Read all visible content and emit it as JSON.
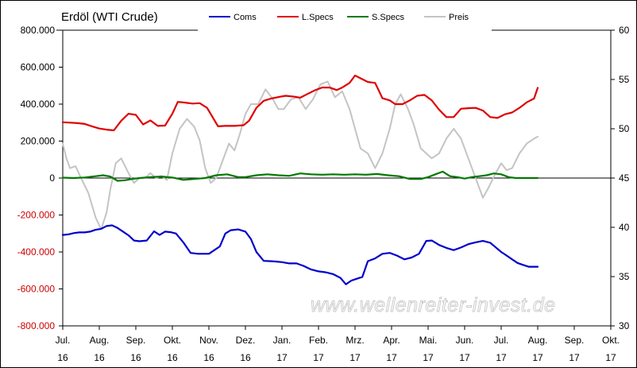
{
  "chart_data": {
    "type": "line",
    "title": "Erdöl (WTI Crude)",
    "watermark": "www.wellenreiter-invest.de",
    "x_tick_labels": [
      [
        "Jul.",
        "16"
      ],
      [
        "Aug.",
        "16"
      ],
      [
        "Sep.",
        "16"
      ],
      [
        "Okt.",
        "16"
      ],
      [
        "Nov.",
        "16"
      ],
      [
        "Dez.",
        "16"
      ],
      [
        "Jan.",
        "17"
      ],
      [
        "Feb.",
        "17"
      ],
      [
        "Mrz.",
        "17"
      ],
      [
        "Apr.",
        "17"
      ],
      [
        "Mai.",
        "17"
      ],
      [
        "Jun.",
        "17"
      ],
      [
        "Jul.",
        "17"
      ],
      [
        "Aug.",
        "17"
      ],
      [
        "Sep.",
        "17"
      ],
      [
        "Okt.",
        "17"
      ]
    ],
    "x_range_months": [
      0,
      15
    ],
    "left_axis": {
      "range": [
        -800000,
        800000
      ],
      "tick_labels": [
        "800.000",
        "600.000",
        "400.000",
        "200.000",
        "0",
        "-200.000",
        "-400.000",
        "-600.000",
        "-800.000"
      ],
      "tick_values": [
        800000,
        600000,
        400000,
        200000,
        0,
        -200000,
        -400000,
        -600000,
        -800000
      ]
    },
    "right_axis": {
      "range": [
        30,
        60
      ],
      "tick_labels": [
        "60",
        "55",
        "50",
        "45",
        "40",
        "35",
        "30"
      ],
      "tick_values": [
        60,
        55,
        50,
        45,
        40,
        35,
        30
      ]
    },
    "grid": "horizontal-at-zero",
    "legend_position": "top",
    "series": [
      {
        "name": "Coms",
        "color": "#0000cc",
        "axis": "left",
        "x": [
          0,
          0.15,
          0.3,
          0.45,
          0.6,
          0.75,
          0.9,
          1.05,
          1.2,
          1.35,
          1.5,
          1.65,
          1.8,
          1.95,
          2.1,
          2.3,
          2.5,
          2.65,
          2.8,
          2.95,
          3.1,
          3.3,
          3.5,
          3.7,
          3.85,
          4.0,
          4.15,
          4.3,
          4.45,
          4.6,
          4.8,
          5.0,
          5.15,
          5.3,
          5.5,
          5.7,
          5.85,
          6.0,
          6.2,
          6.4,
          6.6,
          6.8,
          7.0,
          7.2,
          7.4,
          7.6,
          7.75,
          7.9,
          8.05,
          8.2,
          8.35,
          8.55,
          8.75,
          8.95,
          9.15,
          9.35,
          9.55,
          9.75,
          9.95,
          10.1,
          10.3,
          10.5,
          10.7,
          10.9,
          11.1,
          11.3,
          11.5,
          11.7,
          11.85,
          12.0,
          12.15,
          12.3,
          12.45,
          12.6,
          12.75,
          12.85,
          13.0
        ],
        "values": [
          -308000,
          -305000,
          -298000,
          -294000,
          -294000,
          -290000,
          -280000,
          -275000,
          -260000,
          -256000,
          -270000,
          -290000,
          -310000,
          -338000,
          -342000,
          -338000,
          -288000,
          -308000,
          -290000,
          -293000,
          -300000,
          -348000,
          -405000,
          -410000,
          -410000,
          -410000,
          -390000,
          -370000,
          -300000,
          -282000,
          -278000,
          -290000,
          -330000,
          -400000,
          -448000,
          -450000,
          -452000,
          -455000,
          -462000,
          -462000,
          -476000,
          -495000,
          -505000,
          -510000,
          -520000,
          -540000,
          -575000,
          -555000,
          -545000,
          -535000,
          -450000,
          -435000,
          -410000,
          -405000,
          -420000,
          -440000,
          -430000,
          -410000,
          -340000,
          -338000,
          -362000,
          -378000,
          -390000,
          -376000,
          -358000,
          -348000,
          -340000,
          -350000,
          -375000,
          -400000,
          -420000,
          -440000,
          -460000,
          -470000,
          -480000,
          -480000,
          -480000
        ]
      },
      {
        "name": "L.Specs",
        "color": "#e00000",
        "axis": "left",
        "x": [
          0,
          0.2,
          0.4,
          0.6,
          0.8,
          1.0,
          1.2,
          1.4,
          1.6,
          1.8,
          2.0,
          2.2,
          2.4,
          2.6,
          2.8,
          3.0,
          3.15,
          3.35,
          3.55,
          3.75,
          3.95,
          4.1,
          4.25,
          4.45,
          4.7,
          4.95,
          5.1,
          5.3,
          5.5,
          5.7,
          5.95,
          6.1,
          6.35,
          6.5,
          6.7,
          6.9,
          7.1,
          7.3,
          7.5,
          7.65,
          7.85,
          8.0,
          8.15,
          8.35,
          8.55,
          8.75,
          8.95,
          9.1,
          9.3,
          9.5,
          9.7,
          9.9,
          10.1,
          10.3,
          10.5,
          10.7,
          10.9,
          11.1,
          11.3,
          11.5,
          11.7,
          11.9,
          12.1,
          12.3,
          12.5,
          12.7,
          12.9,
          13.0
        ],
        "values": [
          302000,
          300000,
          297000,
          293000,
          280000,
          268000,
          262000,
          258000,
          310000,
          348000,
          342000,
          290000,
          312000,
          282000,
          284000,
          348000,
          412000,
          408000,
          403000,
          405000,
          380000,
          330000,
          280000,
          282000,
          282000,
          286000,
          310000,
          380000,
          418000,
          430000,
          440000,
          445000,
          440000,
          435000,
          455000,
          475000,
          490000,
          490000,
          476000,
          490000,
          515000,
          555000,
          540000,
          520000,
          515000,
          432000,
          420000,
          400000,
          400000,
          420000,
          445000,
          450000,
          420000,
          370000,
          330000,
          330000,
          375000,
          378000,
          380000,
          365000,
          330000,
          325000,
          345000,
          355000,
          380000,
          410000,
          430000,
          488000
        ]
      },
      {
        "name": "S.Specs",
        "color": "#007a00",
        "axis": "left",
        "x": [
          0,
          0.3,
          0.6,
          0.9,
          1.1,
          1.3,
          1.5,
          1.7,
          1.9,
          2.1,
          2.4,
          2.7,
          3.0,
          3.3,
          3.6,
          3.9,
          4.2,
          4.5,
          4.8,
          5.0,
          5.3,
          5.6,
          5.9,
          6.2,
          6.5,
          6.8,
          7.1,
          7.4,
          7.7,
          8.0,
          8.3,
          8.6,
          8.9,
          9.2,
          9.5,
          9.8,
          10.0,
          10.2,
          10.4,
          10.6,
          10.8,
          11.0,
          11.2,
          11.4,
          11.6,
          11.8,
          12.0,
          12.2,
          12.4,
          12.6,
          12.8,
          13.0
        ],
        "values": [
          2000,
          0,
          3000,
          10000,
          15000,
          8000,
          -15000,
          -12000,
          -5000,
          0,
          5000,
          8000,
          3000,
          -10000,
          -5000,
          0,
          15000,
          20000,
          5000,
          5000,
          15000,
          20000,
          15000,
          12000,
          25000,
          20000,
          18000,
          20000,
          18000,
          20000,
          18000,
          22000,
          15000,
          10000,
          -5000,
          -5000,
          5000,
          20000,
          35000,
          10000,
          5000,
          -3000,
          5000,
          10000,
          15000,
          25000,
          20000,
          5000,
          0,
          0,
          0,
          0
        ]
      },
      {
        "name": "Preis",
        "color": "#c4c4c4",
        "axis": "right",
        "x": [
          0,
          0.1,
          0.2,
          0.35,
          0.5,
          0.7,
          0.9,
          1.05,
          1.2,
          1.3,
          1.45,
          1.6,
          1.8,
          1.95,
          2.1,
          2.25,
          2.4,
          2.55,
          2.7,
          2.85,
          3.0,
          3.2,
          3.4,
          3.6,
          3.75,
          3.9,
          4.05,
          4.2,
          4.35,
          4.55,
          4.7,
          4.85,
          5.0,
          5.15,
          5.35,
          5.55,
          5.75,
          5.9,
          6.05,
          6.25,
          6.45,
          6.65,
          6.85,
          7.05,
          7.25,
          7.45,
          7.65,
          7.85,
          8.0,
          8.15,
          8.35,
          8.55,
          8.75,
          8.95,
          9.1,
          9.25,
          9.45,
          9.6,
          9.8,
          9.95,
          10.1,
          10.3,
          10.5,
          10.7,
          10.9,
          11.1,
          11.3,
          11.5,
          11.65,
          11.85,
          12.0,
          12.15,
          12.3,
          12.5,
          12.7,
          12.9,
          13.0
        ],
        "values": [
          48.5,
          47.0,
          46.0,
          46.2,
          45.0,
          43.5,
          41.0,
          39.8,
          41.5,
          43.8,
          46.5,
          47.0,
          45.5,
          44.5,
          45.0,
          45.0,
          45.5,
          45.0,
          45.2,
          44.8,
          47.5,
          50.0,
          51.0,
          50.2,
          48.8,
          46.0,
          44.5,
          45.0,
          46.5,
          48.5,
          47.8,
          49.5,
          51.5,
          52.5,
          52.5,
          54.0,
          53.0,
          52.0,
          52.0,
          53.0,
          53.2,
          52.0,
          53.0,
          54.5,
          54.8,
          53.2,
          53.8,
          52.0,
          50.0,
          48.0,
          47.5,
          46.0,
          47.5,
          50.0,
          52.5,
          53.5,
          52.0,
          50.5,
          48.0,
          47.5,
          47.0,
          47.5,
          49.0,
          50.0,
          49.0,
          47.0,
          45.0,
          43.0,
          44.0,
          45.5,
          46.5,
          45.8,
          46.0,
          47.5,
          48.5,
          49.0,
          49.2
        ]
      }
    ]
  }
}
